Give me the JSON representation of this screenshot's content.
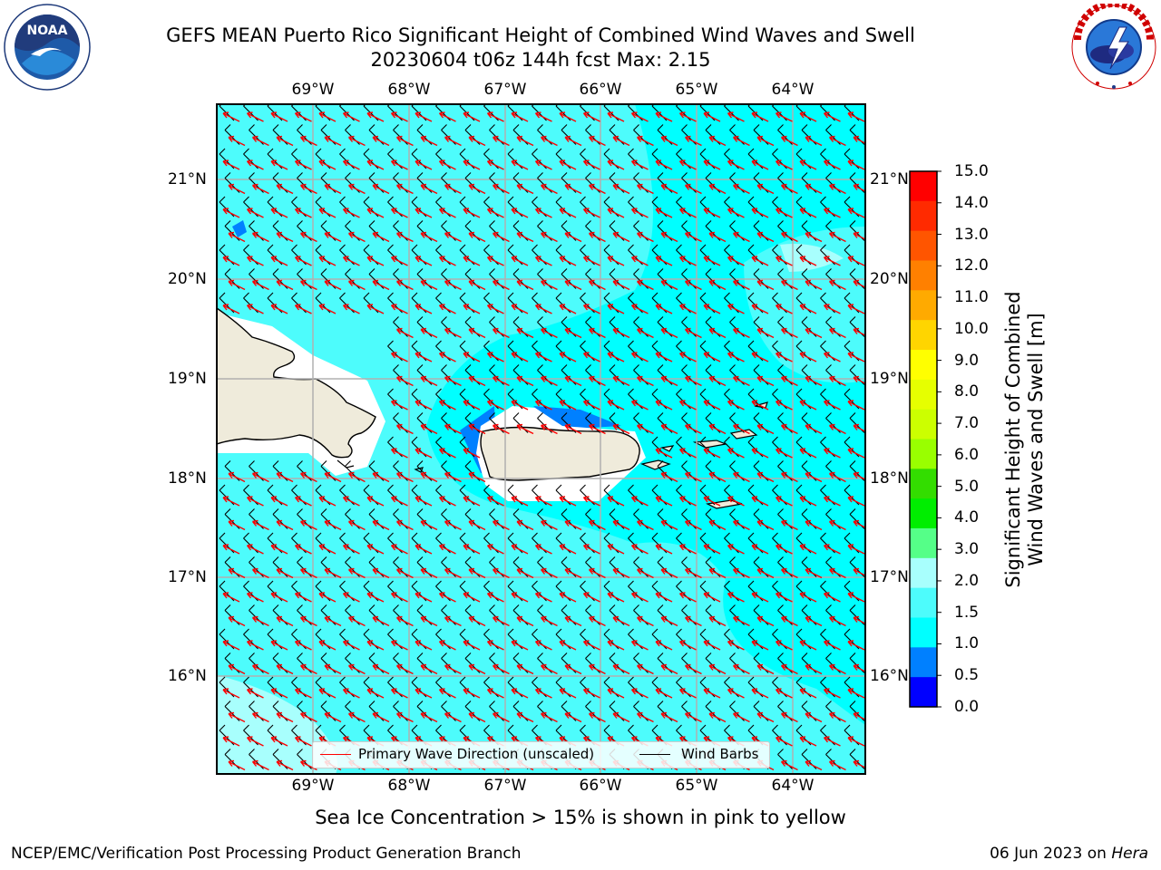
{
  "header": {
    "title_line1": "GEFS MEAN Puerto Rico Significant Height of Combined Wind Waves and Swell",
    "title_line2": "20230604 t06z 144h fcst   Max: 2.15"
  },
  "logos": {
    "left": {
      "icon": "noaa-logo",
      "text": "NOAA",
      "ring_text": "NATIONAL OCEANIC AND ATMOSPHERIC ADMINISTRATION · U.S. DEPARTMENT OF COMMERCE"
    },
    "right": {
      "icon": "nws-logo",
      "ring_text": "NATIONAL WEATHER SERVICE"
    }
  },
  "map": {
    "lon_labels": [
      "69°W",
      "68°W",
      "67°W",
      "66°W",
      "65°W",
      "64°W"
    ],
    "lat_labels": [
      "21°N",
      "20°N",
      "19°N",
      "18°N",
      "17°N",
      "16°N"
    ],
    "colors": {
      "ocean_1_15": "#00ffff",
      "ocean_15_2": "#4dfcfc",
      "ocean_2_3": "#a8fffd",
      "ocean_05_1": "#0080ff",
      "land": "#efebdb",
      "coast": "#000000",
      "grid": "#b0b0b0",
      "wave_arrow": "#ff0000",
      "wind_barb": "#000000"
    }
  },
  "colorbar": {
    "ticks": [
      "15.0",
      "14.0",
      "13.0",
      "12.0",
      "11.0",
      "10.0",
      "9.0",
      "8.0",
      "7.0",
      "6.0",
      "5.0",
      "4.0",
      "3.0",
      "2.0",
      "1.5",
      "1.0",
      "0.5",
      "0.0"
    ],
    "colors_top_to_bottom": [
      "#ff0000",
      "#ff2a00",
      "#ff5500",
      "#ff8000",
      "#ffaa00",
      "#ffd500",
      "#ffff00",
      "#e6ff00",
      "#ccff00",
      "#99ff00",
      "#33dd00",
      "#00ee00",
      "#55ff88",
      "#a8fffd",
      "#4dfcfc",
      "#00ffff",
      "#0080ff",
      "#0000ff"
    ],
    "label_line1": "Significant Height of Combined",
    "label_line2": "Wind Waves and Swell [m]"
  },
  "legend": {
    "primary_wave": "Primary Wave Direction (unscaled)",
    "wind_barbs": "Wind Barbs"
  },
  "note": "Sea Ice Concentration > 15% is shown in pink to yellow",
  "footer": {
    "left": "NCEP/EMC/Verification Post Processing Product Generation Branch",
    "right_date": "06 Jun 2023 on",
    "right_host": "Hera"
  }
}
